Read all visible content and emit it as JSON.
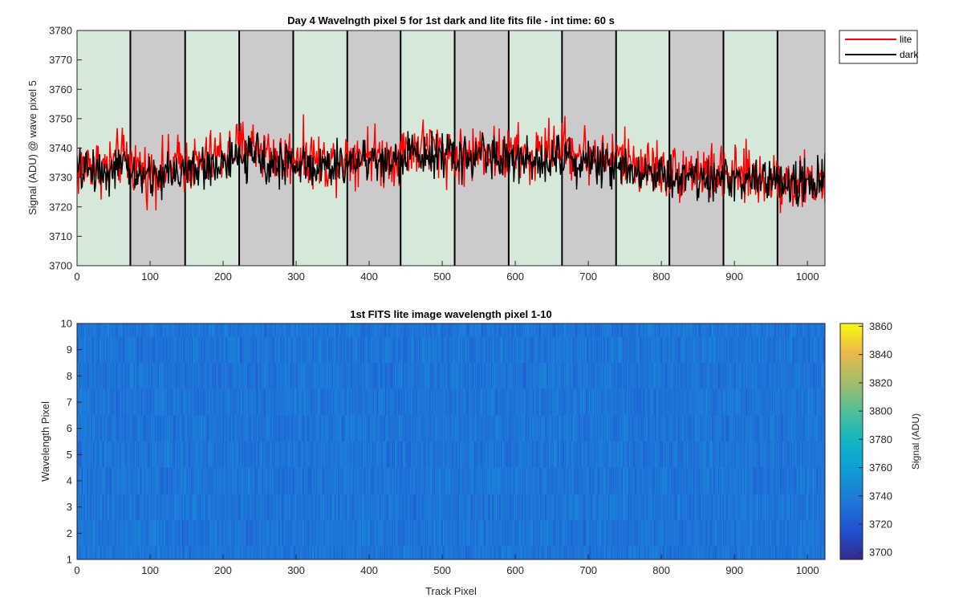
{
  "chart_data": [
    {
      "type": "line",
      "title": "Day 4 Wavelngth pixel 5 for 1st dark and lite fits file - int time: 60 s",
      "xlabel": "",
      "ylabel": "Signal (ADU) @ wave pixel 5",
      "xlim": [
        0,
        1024
      ],
      "ylim": [
        3700,
        3780
      ],
      "xticks": [
        0,
        100,
        200,
        300,
        400,
        500,
        600,
        700,
        800,
        900,
        1000
      ],
      "yticks": [
        3700,
        3710,
        3720,
        3730,
        3740,
        3750,
        3760,
        3770,
        3780
      ],
      "legend_position": "outside-top-right",
      "background_bands": {
        "boundaries": [
          0,
          73,
          148,
          222,
          296,
          370,
          443,
          517,
          591,
          664,
          738,
          811,
          885,
          959,
          1024
        ],
        "colors": [
          "#d5e8d9",
          "#cbcbcb"
        ]
      },
      "series": [
        {
          "name": "lite",
          "color": "#ff0000",
          "anchor_x": [
            0,
            20,
            40,
            60,
            80,
            100,
            120,
            140,
            160,
            180,
            200,
            220,
            240,
            260,
            280,
            300,
            320,
            340,
            360,
            380,
            400,
            420,
            440,
            460,
            480,
            500,
            520,
            540,
            560,
            580,
            600,
            620,
            640,
            660,
            680,
            700,
            720,
            740,
            760,
            780,
            800,
            820,
            840,
            860,
            880,
            900,
            920,
            940,
            960,
            980,
            1000,
            1024
          ],
          "anchor_y": [
            3732,
            3735,
            3733,
            3737,
            3734,
            3731,
            3733,
            3735,
            3734,
            3736,
            3738,
            3740,
            3741,
            3739,
            3736,
            3738,
            3737,
            3735,
            3736,
            3738,
            3739,
            3736,
            3738,
            3740,
            3741,
            3739,
            3737,
            3738,
            3740,
            3737,
            3738,
            3736,
            3739,
            3741,
            3739,
            3738,
            3736,
            3737,
            3735,
            3734,
            3733,
            3731,
            3733,
            3732,
            3731,
            3730,
            3731,
            3729,
            3730,
            3728,
            3728,
            3729
          ],
          "noise_amplitude": 9
        },
        {
          "name": "dark",
          "color": "#000000",
          "anchor_x": [
            0,
            20,
            40,
            60,
            80,
            100,
            120,
            140,
            160,
            180,
            200,
            220,
            240,
            260,
            280,
            300,
            320,
            340,
            360,
            380,
            400,
            420,
            440,
            460,
            480,
            500,
            520,
            540,
            560,
            580,
            600,
            620,
            640,
            660,
            680,
            700,
            720,
            740,
            760,
            780,
            800,
            820,
            840,
            860,
            880,
            900,
            920,
            940,
            960,
            980,
            1000,
            1024
          ],
          "anchor_y": [
            3732,
            3733,
            3732,
            3734,
            3731,
            3730,
            3731,
            3733,
            3732,
            3734,
            3735,
            3736,
            3737,
            3736,
            3734,
            3735,
            3734,
            3733,
            3734,
            3736,
            3737,
            3735,
            3736,
            3738,
            3739,
            3738,
            3736,
            3737,
            3739,
            3736,
            3736,
            3735,
            3737,
            3738,
            3736,
            3735,
            3734,
            3735,
            3733,
            3732,
            3731,
            3730,
            3731,
            3730,
            3729,
            3729,
            3730,
            3728,
            3729,
            3728,
            3728,
            3729
          ],
          "noise_amplitude": 7
        }
      ]
    },
    {
      "type": "heatmap",
      "title": "1st FITS lite image wavelength pixel 1-10",
      "xlabel": "Track Pixel",
      "ylabel": "Wavelength Pixel",
      "xlim": [
        0,
        1024
      ],
      "ylim": [
        1,
        10
      ],
      "xticks": [
        0,
        100,
        200,
        300,
        400,
        500,
        600,
        700,
        800,
        900,
        1000
      ],
      "yticks": [
        1,
        2,
        3,
        4,
        5,
        6,
        7,
        8,
        9,
        10
      ],
      "rows": 10,
      "cols": 1024,
      "value_typical": 3735,
      "value_spread": 10,
      "colormap": "parula",
      "colorbar": {
        "label": "Signal (ADU)",
        "range": [
          3695,
          3862
        ],
        "ticks": [
          3700,
          3720,
          3740,
          3760,
          3780,
          3800,
          3820,
          3840,
          3860
        ]
      }
    }
  ]
}
